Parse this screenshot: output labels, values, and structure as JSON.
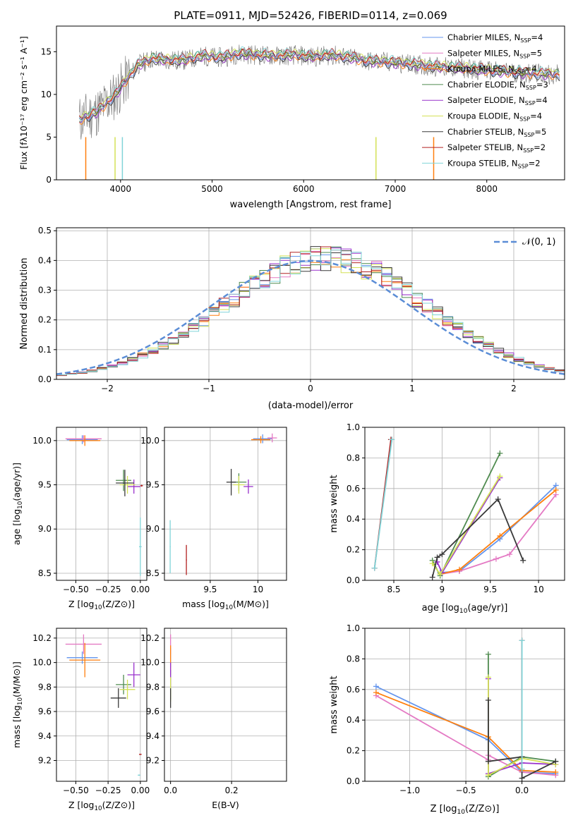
{
  "chart_data": [
    {
      "id": "spectrum",
      "type": "line",
      "title": "PLATE=0911, MJD=52426, FIBERID=0114, z=0.069",
      "xlabel": "wavelength [Angstrom, rest frame]",
      "ylabel": "Flux [fλ10⁻¹⁷ erg cm⁻² s⁻¹ A⁻¹]",
      "xlim": [
        3300,
        8850
      ],
      "ylim": [
        0,
        18
      ],
      "xticks": [
        4000,
        5000,
        6000,
        7000,
        8000
      ],
      "yticks": [
        0,
        5,
        10,
        15
      ],
      "grid": false,
      "legend_position": "top-right",
      "x": [
        3550,
        3650,
        3750,
        3850,
        3950,
        4050,
        4200,
        4350,
        4500,
        4700,
        4900,
        5100,
        5300,
        5500,
        5700,
        5900,
        6100,
        6300,
        6500,
        6700,
        6900,
        7100,
        7300,
        7500,
        7800,
        8100,
        8400,
        8800
      ],
      "observed": [
        7.0,
        7.5,
        8.0,
        9.0,
        10.0,
        11.5,
        13.5,
        14.2,
        14.0,
        14.0,
        14.5,
        14.3,
        14.8,
        14.6,
        14.5,
        14.6,
        14.4,
        14.6,
        14.3,
        13.9,
        13.8,
        13.6,
        13.4,
        13.2,
        13.0,
        12.7,
        12.5,
        12.3
      ],
      "series": [
        {
          "name": "Chabrier MILES, N_SSP=4",
          "label_main": "Chabrier MILES, N",
          "label_sub": "SSP",
          "label_end": "=4",
          "color": "#6495ed",
          "offset": 0.0
        },
        {
          "name": "Salpeter MILES, N_SSP=5",
          "label_main": "Salpeter MILES, N",
          "label_sub": "SSP",
          "label_end": "=5",
          "color": "#e47ac4",
          "offset": 0.1
        },
        {
          "name": "Kroupa MILES, N_SSP=4",
          "label_main": "Kroupa MILES, N",
          "label_sub": "SSP",
          "label_end": "=4",
          "color": "#ff7f0e",
          "offset": -0.1
        },
        {
          "name": "Chabrier ELODIE, N_SSP=3",
          "label_main": "Chabrier ELODIE, N",
          "label_sub": "SSP",
          "label_end": "=3",
          "color": "#4f8b4f",
          "offset": 0.15
        },
        {
          "name": "Salpeter ELODIE, N_SSP=4",
          "label_main": "Salpeter ELODIE, N",
          "label_sub": "SSP",
          "label_end": "=4",
          "color": "#9932cc",
          "offset": -0.15
        },
        {
          "name": "Kroupa ELODIE, N_SSP=4",
          "label_main": "Kroupa ELODIE, N",
          "label_sub": "SSP",
          "label_end": "=4",
          "color": "#d4e157",
          "offset": 0.2
        },
        {
          "name": "Chabrier STELIB, N_SSP=5",
          "label_main": "Chabrier STELIB, N",
          "label_sub": "SSP",
          "label_end": "=5",
          "color": "#3a3a3a",
          "offset": -0.2
        },
        {
          "name": "Salpeter STELIB, N_SSP=2",
          "label_main": "Salpeter STELIB, N",
          "label_sub": "SSP",
          "label_end": "=2",
          "color": "#b22222",
          "offset": 0.25
        },
        {
          "name": "Kroupa STELIB, N_SSP=2",
          "label_main": "Kroupa STELIB, N",
          "label_sub": "SSP",
          "label_end": "=2",
          "color": "#80d4d8",
          "offset": 0.3
        }
      ]
    },
    {
      "id": "residuals",
      "type": "bar",
      "xlabel": "(data-model)/error",
      "ylabel": "Normed distribution",
      "xlim": [
        -2.5,
        2.5
      ],
      "ylim": [
        0,
        0.51
      ],
      "xticks": [
        -2,
        -1,
        0,
        1,
        2
      ],
      "yticks": [
        0.0,
        0.1,
        0.2,
        0.3,
        0.4,
        0.5
      ],
      "grid": true,
      "legend_position": "top-right",
      "normal_label": "𝒩(0, 1)",
      "normal_color": "#5b8dd6",
      "bin_width": 0.1
    },
    {
      "id": "age_vs_Z",
      "type": "scatter",
      "xlabel_main": "Z [log",
      "xlabel_sub": "10",
      "xlabel_end": "(Z/Z⊙)]",
      "ylabel_main": "age  [log",
      "ylabel_sub": "10",
      "ylabel_end": "(age/yr)]",
      "xlim": [
        -0.65,
        0.05
      ],
      "ylim": [
        8.42,
        10.15
      ],
      "xticks": [
        -0.5,
        -0.25,
        0.0
      ],
      "xtick_labels": [
        "−0.50",
        "−0.25",
        "0.00"
      ],
      "yticks": [
        8.5,
        9.0,
        9.5,
        10.0
      ],
      "grid": true,
      "points": [
        {
          "x": -0.45,
          "xerr": 0.12,
          "y": 10.01,
          "yerr": 0.05,
          "color": "#6495ed"
        },
        {
          "x": -0.44,
          "xerr": 0.14,
          "y": 10.02,
          "yerr": 0.04,
          "color": "#e47ac4"
        },
        {
          "x": -0.43,
          "xerr": 0.12,
          "y": 10.0,
          "yerr": 0.06,
          "color": "#ff7f0e"
        },
        {
          "x": -0.13,
          "xerr": 0.06,
          "y": 9.55,
          "yerr": 0.12,
          "color": "#4f8b4f"
        },
        {
          "x": -0.05,
          "xerr": 0.05,
          "y": 9.48,
          "yerr": 0.08,
          "color": "#9932cc"
        },
        {
          "x": -0.1,
          "xerr": 0.06,
          "y": 9.5,
          "yerr": 0.1,
          "color": "#d4e157"
        },
        {
          "x": -0.12,
          "xerr": 0.07,
          "y": 9.52,
          "yerr": 0.15,
          "color": "#3a3a3a"
        },
        {
          "x": 0.01,
          "xerr": 0.01,
          "y": 9.49,
          "yerr": 0.01,
          "color": "#b22222"
        },
        {
          "x": 0.0,
          "xerr": 0.01,
          "y": 8.8,
          "yerr": 0.33,
          "color": "#80d4d8"
        }
      ]
    },
    {
      "id": "age_vs_mass",
      "type": "scatter",
      "xlabel_main": "mass [log",
      "xlabel_sub": "10",
      "xlabel_end": "(M/M⊙)]",
      "xlim": [
        9.02,
        10.3
      ],
      "ylim": [
        8.42,
        10.15
      ],
      "xticks": [
        9.5,
        10.0
      ],
      "yticks": [
        8.5,
        9.0,
        9.5,
        10.0
      ],
      "grid": true,
      "points": [
        {
          "x": 10.05,
          "xerr": 0.1,
          "y": 10.02,
          "yerr": 0.05,
          "color": "#6495ed"
        },
        {
          "x": 10.15,
          "xerr": 0.05,
          "y": 10.03,
          "yerr": 0.05,
          "color": "#e47ac4"
        },
        {
          "x": 10.03,
          "xerr": 0.1,
          "y": 10.01,
          "yerr": 0.04,
          "color": "#ff7f0e"
        },
        {
          "x": 9.8,
          "xerr": 0.08,
          "y": 9.53,
          "yerr": 0.1,
          "color": "#4f8b4f"
        },
        {
          "x": 9.9,
          "xerr": 0.05,
          "y": 9.48,
          "yerr": 0.08,
          "color": "#9932cc"
        },
        {
          "x": 9.8,
          "xerr": 0.06,
          "y": 9.5,
          "yerr": 0.1,
          "color": "#d4e157"
        },
        {
          "x": 9.72,
          "xerr": 0.05,
          "y": 9.53,
          "yerr": 0.15,
          "color": "#3a3a3a"
        },
        {
          "x": 9.25,
          "xerr": 0.005,
          "y": 8.65,
          "yerr": 0.17,
          "color": "#b22222"
        },
        {
          "x": 9.08,
          "xerr": 0.005,
          "y": 8.8,
          "yerr": 0.3,
          "color": "#80d4d8"
        }
      ]
    },
    {
      "id": "weight_vs_age",
      "type": "line",
      "xlabel_main": "age  [log",
      "xlabel_sub": "10",
      "xlabel_end": "(age/yr)]",
      "ylabel": "mass weight",
      "xlim": [
        8.2,
        10.27
      ],
      "ylim": [
        0.0,
        1.0
      ],
      "xticks": [
        8.5,
        9.0,
        9.5,
        10.0
      ],
      "yticks": [
        0.0,
        0.2,
        0.4,
        0.6,
        0.8,
        1.0
      ],
      "grid": true,
      "series": [
        {
          "color": "#6495ed",
          "x": [
            8.98,
            9.18,
            9.6,
            10.18
          ],
          "y": [
            0.05,
            0.06,
            0.27,
            0.62
          ]
        },
        {
          "color": "#e47ac4",
          "x": [
            8.98,
            9.18,
            9.56,
            9.7,
            10.18
          ],
          "y": [
            0.04,
            0.06,
            0.14,
            0.17,
            0.56
          ]
        },
        {
          "color": "#ff7f0e",
          "x": [
            8.98,
            9.18,
            9.6,
            10.18
          ],
          "y": [
            0.04,
            0.07,
            0.29,
            0.59
          ]
        },
        {
          "color": "#4f8b4f",
          "x": [
            8.9,
            8.98,
            9.6
          ],
          "y": [
            0.13,
            0.03,
            0.83
          ]
        },
        {
          "color": "#9932cc",
          "x": [
            8.95,
            9.0,
            9.6
          ],
          "y": [
            0.12,
            0.05,
            0.67
          ]
        },
        {
          "color": "#d4e157",
          "x": [
            8.9,
            8.98,
            9.6
          ],
          "y": [
            0.11,
            0.04,
            0.68
          ]
        },
        {
          "color": "#3a3a3a",
          "x": [
            8.9,
            8.95,
            9.0,
            9.58,
            9.84
          ],
          "y": [
            0.02,
            0.15,
            0.17,
            0.53,
            0.13
          ]
        },
        {
          "color": "#b22222",
          "x": [
            8.3,
            8.47
          ],
          "y": [
            0.08,
            0.92
          ]
        },
        {
          "color": "#80d4d8",
          "x": [
            8.3,
            8.48
          ],
          "y": [
            0.08,
            0.92
          ]
        }
      ]
    },
    {
      "id": "mass_vs_Z",
      "type": "scatter",
      "xlabel_main": "Z [log",
      "xlabel_sub": "10",
      "xlabel_end": "(Z/Z⊙)]",
      "ylabel_main": "mass [log",
      "ylabel_sub": "10",
      "ylabel_end": "(M/M⊙)]",
      "xlim": [
        -0.65,
        0.05
      ],
      "ylim": [
        9.03,
        10.28
      ],
      "xticks": [
        -0.5,
        -0.25,
        0.0
      ],
      "xtick_labels": [
        "−0.50",
        "−0.25",
        "0.00"
      ],
      "yticks": [
        9.2,
        9.4,
        9.6,
        9.8,
        10.0,
        10.2
      ],
      "grid": true,
      "points": [
        {
          "x": -0.45,
          "xerr": 0.12,
          "y": 10.04,
          "yerr": 0.05,
          "color": "#6495ed"
        },
        {
          "x": -0.44,
          "xerr": 0.14,
          "y": 10.15,
          "yerr": 0.08,
          "color": "#e47ac4"
        },
        {
          "x": -0.43,
          "xerr": 0.12,
          "y": 10.02,
          "yerr": 0.14,
          "color": "#ff7f0e"
        },
        {
          "x": -0.13,
          "xerr": 0.06,
          "y": 9.82,
          "yerr": 0.08,
          "color": "#4f8b4f"
        },
        {
          "x": -0.05,
          "xerr": 0.05,
          "y": 9.9,
          "yerr": 0.1,
          "color": "#9932cc"
        },
        {
          "x": -0.1,
          "xerr": 0.06,
          "y": 9.78,
          "yerr": 0.08,
          "color": "#d4e157"
        },
        {
          "x": -0.17,
          "xerr": 0.06,
          "y": 9.71,
          "yerr": 0.08,
          "color": "#3a3a3a"
        },
        {
          "x": 0.0,
          "xerr": 0.01,
          "y": 9.25,
          "yerr": 0.005,
          "color": "#b22222"
        },
        {
          "x": -0.01,
          "xerr": 0.01,
          "y": 9.08,
          "yerr": 0.005,
          "color": "#80d4d8"
        }
      ]
    },
    {
      "id": "mass_vs_ebv",
      "type": "scatter",
      "xlabel": "E(B-V)",
      "xlim": [
        -0.02,
        0.38
      ],
      "ylim": [
        9.03,
        10.28
      ],
      "xticks": [
        0.0,
        0.2
      ],
      "xtick_labels": [
        "0.0",
        "0.2"
      ],
      "yticks": [
        9.2,
        9.4,
        9.6,
        9.8,
        10.0,
        10.2
      ],
      "grid": true,
      "points": [
        {
          "x": 0.0,
          "xerr": 0.0,
          "y": 10.04,
          "yerr": 0.08,
          "color": "#6495ed"
        },
        {
          "x": 0.0,
          "xerr": 0.0,
          "y": 10.15,
          "yerr": 0.08,
          "color": "#e47ac4"
        },
        {
          "x": 0.0,
          "xerr": 0.0,
          "y": 10.02,
          "yerr": 0.12,
          "color": "#ff7f0e"
        },
        {
          "x": 0.0,
          "xerr": 0.0,
          "y": 9.82,
          "yerr": 0.12,
          "color": "#4f8b4f"
        },
        {
          "x": 0.0,
          "xerr": 0.0,
          "y": 9.9,
          "yerr": 0.1,
          "color": "#9932cc"
        },
        {
          "x": 0.0,
          "xerr": 0.0,
          "y": 9.78,
          "yerr": 0.1,
          "color": "#d4e157"
        },
        {
          "x": 0.0,
          "xerr": 0.0,
          "y": 9.71,
          "yerr": 0.08,
          "color": "#3a3a3a"
        }
      ]
    },
    {
      "id": "weight_vs_Z",
      "type": "line",
      "xlabel_main": "Z [log",
      "xlabel_sub": "10",
      "xlabel_end": "(Z/Z⊙)]",
      "ylabel": "mass weight",
      "xlim": [
        -1.4,
        0.38
      ],
      "ylim": [
        0.0,
        1.0
      ],
      "xticks": [
        -1.0,
        -0.5,
        0.0
      ],
      "xtick_labels": [
        "−1.0",
        "−0.5",
        "0.0"
      ],
      "yticks": [
        0.0,
        0.2,
        0.4,
        0.6,
        0.8,
        1.0
      ],
      "grid": true,
      "series": [
        {
          "color": "#6495ed",
          "x": [
            -1.3,
            -0.3,
            0.0,
            0.3
          ],
          "y": [
            0.62,
            0.27,
            0.06,
            0.05
          ]
        },
        {
          "color": "#e47ac4",
          "x": [
            -1.3,
            -0.3,
            -0.3,
            0.0,
            0.3
          ],
          "y": [
            0.56,
            0.14,
            0.17,
            0.06,
            0.04
          ]
        },
        {
          "color": "#ff7f0e",
          "x": [
            -1.3,
            -0.3,
            0.0,
            0.3
          ],
          "y": [
            0.58,
            0.29,
            0.07,
            0.06
          ]
        },
        {
          "color": "#4f8b4f",
          "x": [
            -0.3,
            -0.3,
            0.0,
            0.3
          ],
          "y": [
            0.83,
            0.03,
            0.16,
            0.13
          ]
        },
        {
          "color": "#9932cc",
          "x": [
            -0.3,
            -0.3,
            0.0,
            0.3
          ],
          "y": [
            0.67,
            0.05,
            0.12,
            0.11
          ]
        },
        {
          "color": "#d4e157",
          "x": [
            -0.3,
            -0.3,
            0.0,
            0.3
          ],
          "y": [
            0.68,
            0.04,
            0.15,
            0.11
          ]
        },
        {
          "color": "#3a3a3a",
          "x": [
            -0.3,
            -0.3,
            0.0,
            0.0,
            0.3
          ],
          "y": [
            0.53,
            0.13,
            0.16,
            0.02,
            0.13
          ]
        },
        {
          "color": "#b22222",
          "x": [
            0.0,
            0.0
          ],
          "y": [
            0.08,
            0.92
          ]
        },
        {
          "color": "#80d4d8",
          "x": [
            0.0,
            0.0
          ],
          "y": [
            0.08,
            0.92
          ]
        }
      ]
    }
  ]
}
